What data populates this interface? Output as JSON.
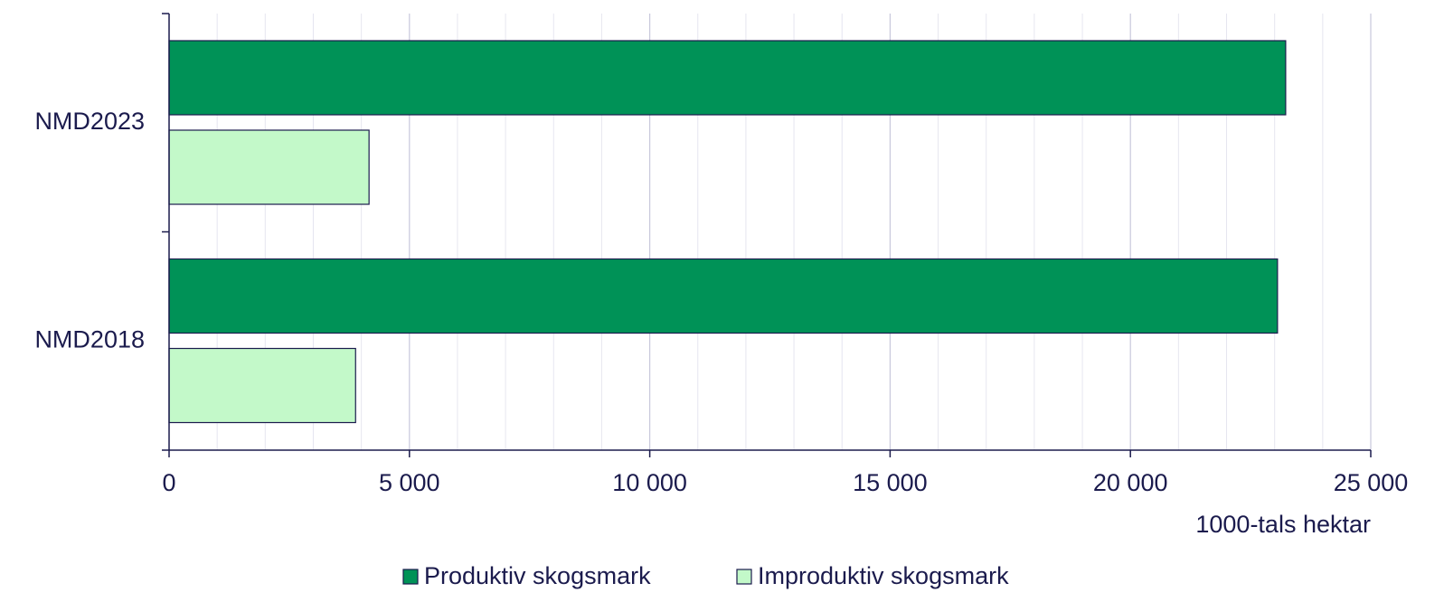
{
  "chart_data": {
    "type": "hbar",
    "categories": [
      "NMD2023",
      "NMD2018"
    ],
    "series": [
      {
        "name": "Produktiv skogsmark",
        "color": "#009257",
        "values": [
          23230,
          23060
        ]
      },
      {
        "name": "Improduktiv skogsmark",
        "color": "#c3f9c9",
        "values": [
          4160,
          3880
        ]
      }
    ],
    "xlabel": "1000-tals hektar",
    "xlim": [
      0,
      25000
    ],
    "xticks": [
      0,
      {
        "value": 5000,
        "label": "5 000"
      },
      {
        "value": 10000,
        "label": "10 000"
      },
      {
        "value": 15000,
        "label": "15 000"
      },
      {
        "value": 20000,
        "label": "20 000"
      },
      {
        "value": 25000,
        "label": "25 000"
      }
    ],
    "xticks_minor": [
      1000,
      2000,
      3000,
      4000,
      6000,
      7000,
      8000,
      9000,
      11000,
      12000,
      13000,
      14000,
      16000,
      17000,
      18000,
      19000,
      21000,
      22000,
      23000,
      24000
    ],
    "grid": true,
    "legend": "bottom"
  }
}
